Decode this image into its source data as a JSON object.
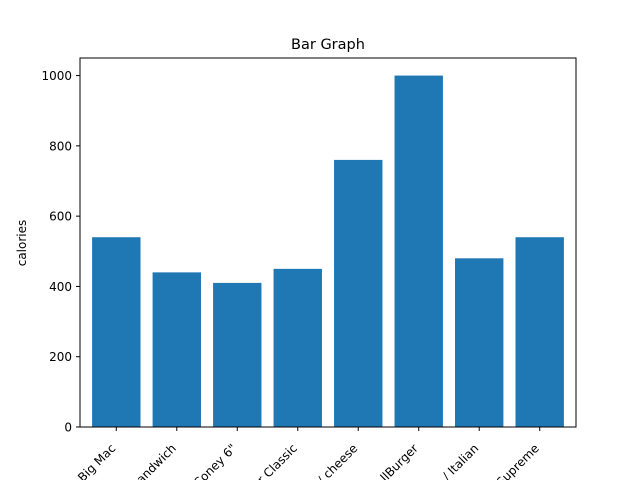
{
  "chart_data": {
    "type": "bar",
    "title": "Bar Graph",
    "xlabel": "",
    "ylabel": "calories",
    "categories": [
      "Big Mac",
      "andwich",
      "Coney 6\"",
      "r Classic",
      "/ cheese",
      "llBurger",
      "/ Italian",
      "Supreme"
    ],
    "values": [
      540,
      440,
      410,
      450,
      760,
      1000,
      480,
      540
    ],
    "ylim": [
      0,
      1050
    ],
    "yticks": [
      0,
      200,
      400,
      600,
      800,
      1000
    ],
    "grid": false,
    "legend": "none",
    "bar_color": "#1f77b4"
  }
}
